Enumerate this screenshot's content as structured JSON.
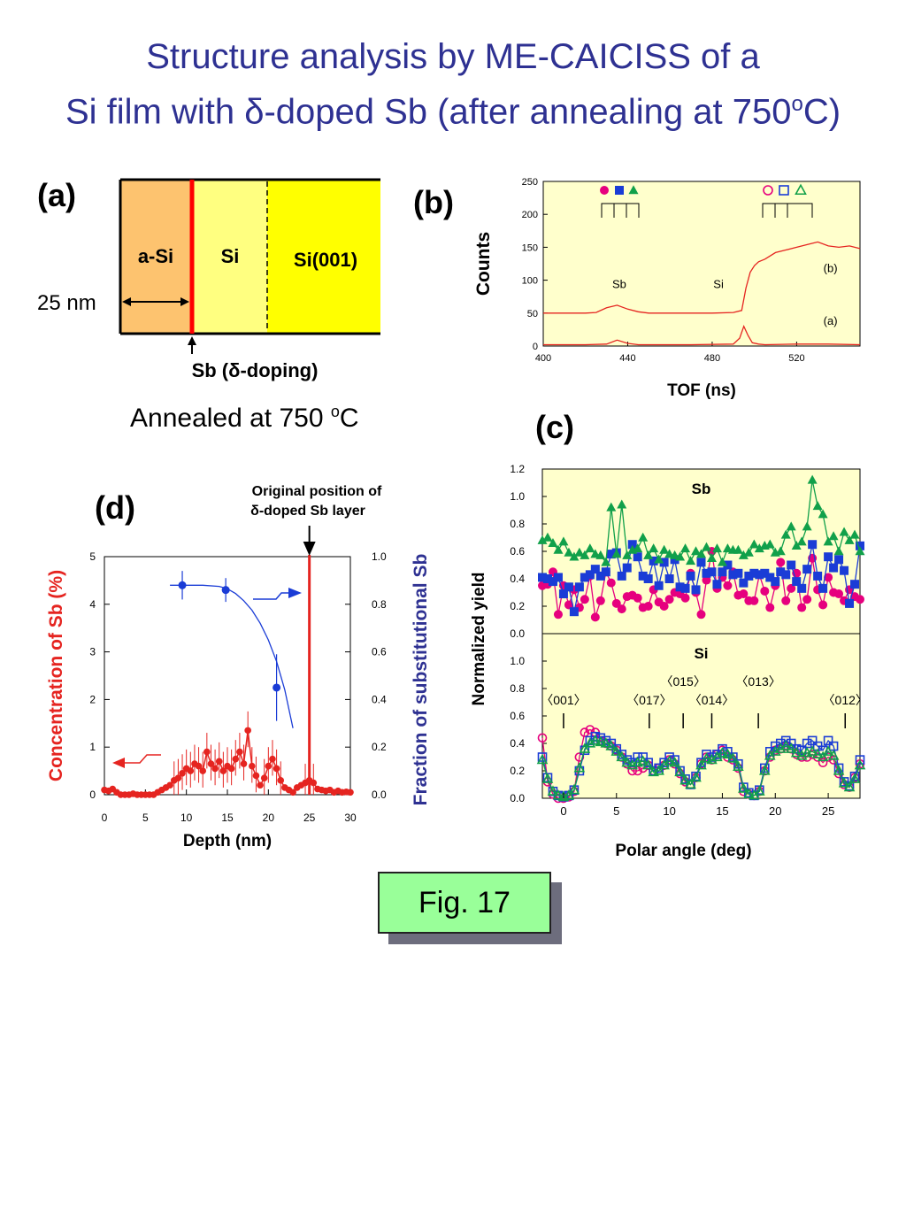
{
  "title": {
    "line1": "Structure analysis by ME-CAICISS of a",
    "line2_pre": "Si film with δ-doped Sb (after annealing at 750",
    "line2_sup": "o",
    "line2_post": "C)"
  },
  "panel_a": {
    "label": "(a)",
    "layers": [
      "a-Si",
      "Si",
      "Si(001)"
    ],
    "thickness_label": "25 nm",
    "marker_label": "Sb (δ-doping)",
    "colors": {
      "a_si": "#fdc36f",
      "si": "#ffff80",
      "si001": "#ffff00",
      "sb": "#ff0000"
    }
  },
  "annealed": {
    "pre": "Annealed at 750 ",
    "sup": "o",
    "post": "C"
  },
  "figure_caption": "Fig. 17",
  "chart_data": [
    {
      "id": "b",
      "label": "(b)",
      "type": "line",
      "xlabel": "TOF (ns)",
      "ylabel": "Counts",
      "xlim": [
        400,
        550
      ],
      "ylim": [
        0,
        250
      ],
      "xticks": [
        400,
        440,
        480,
        520
      ],
      "yticks": [
        0,
        50,
        100,
        150,
        200,
        250
      ],
      "annotations": [
        "Sb",
        "Si",
        "(b)",
        "(a)"
      ],
      "series": [
        {
          "name": "(b)",
          "color": "#e52420",
          "x": [
            400,
            410,
            420,
            425,
            430,
            435,
            440,
            445,
            450,
            460,
            470,
            480,
            490,
            494,
            496,
            498,
            500,
            502,
            505,
            510,
            515,
            520,
            525,
            530,
            535,
            540,
            545,
            550
          ],
          "y": [
            50,
            50,
            50,
            51,
            58,
            62,
            56,
            52,
            50,
            50,
            50,
            50,
            51,
            54,
            88,
            112,
            122,
            128,
            132,
            142,
            146,
            150,
            154,
            158,
            152,
            150,
            152,
            148
          ]
        },
        {
          "name": "(a)",
          "color": "#e52420",
          "x": [
            400,
            420,
            430,
            435,
            440,
            445,
            450,
            470,
            490,
            493,
            495,
            497,
            499,
            502,
            505,
            520,
            535,
            550
          ],
          "y": [
            2,
            2,
            3,
            9,
            4,
            2,
            2,
            2,
            3,
            12,
            30,
            16,
            5,
            3,
            2,
            3,
            3,
            2
          ]
        }
      ],
      "markers": {
        "filled": [
          "circle",
          "square",
          "triangle"
        ],
        "open": [
          "circle",
          "square",
          "triangle"
        ],
        "colors": [
          "#e6007e",
          "#1a3cd6",
          "#11a04a"
        ]
      }
    },
    {
      "id": "c",
      "label": "(c)",
      "type": "scatter",
      "xlabel": "Polar angle (deg)",
      "ylabel": "Normalized yield",
      "xlim": [
        -2,
        28
      ],
      "xticks": [
        0,
        5,
        10,
        15,
        20,
        25
      ],
      "panels": [
        {
          "name": "Sb",
          "ylim": [
            0,
            1.2
          ],
          "yticks": [
            "0.0",
            "0.2",
            "0.4",
            "0.6",
            "0.8",
            "1.0",
            "1.2"
          ],
          "x": [
            -2,
            -1.5,
            -1,
            -0.5,
            0,
            0.5,
            1,
            1.5,
            2,
            2.5,
            3,
            3.5,
            4,
            4.5,
            5,
            5.5,
            6,
            6.5,
            7,
            7.5,
            8,
            8.5,
            9,
            9.5,
            10,
            10.5,
            11,
            11.5,
            12,
            12.5,
            13,
            13.5,
            14,
            14.5,
            15,
            15.5,
            16,
            16.5,
            17,
            17.5,
            18,
            18.5,
            19,
            19.5,
            20,
            20.5,
            21,
            21.5,
            22,
            22.5,
            23,
            23.5,
            24,
            24.5,
            25,
            25.5,
            26,
            26.5,
            27,
            27.5,
            28
          ],
          "series": [
            {
              "name": "red",
              "color": "#e6007e",
              "marker": "circle",
              "values": [
                0.35,
                0.36,
                0.45,
                0.14,
                0.35,
                0.21,
                0.32,
                0.19,
                0.25,
                0.42,
                0.12,
                0.24,
                0.45,
                0.37,
                0.22,
                0.18,
                0.27,
                0.28,
                0.26,
                0.19,
                0.2,
                0.32,
                0.23,
                0.2,
                0.25,
                0.3,
                0.29,
                0.26,
                0.44,
                0.3,
                0.14,
                0.39,
                0.6,
                0.33,
                0.41,
                0.35,
                0.45,
                0.28,
                0.29,
                0.24,
                0.24,
                0.43,
                0.31,
                0.19,
                0.35,
                0.52,
                0.24,
                0.33,
                0.44,
                0.19,
                0.25,
                0.55,
                0.32,
                0.21,
                0.41,
                0.3,
                0.29,
                0.24,
                0.32,
                0.27,
                0.25
              ]
            },
            {
              "name": "blue",
              "color": "#1a3cd6",
              "marker": "square",
              "values": [
                0.41,
                0.4,
                0.38,
                0.41,
                0.29,
                0.34,
                0.16,
                0.34,
                0.41,
                0.43,
                0.47,
                0.42,
                0.45,
                0.58,
                0.59,
                0.42,
                0.48,
                0.65,
                0.56,
                0.42,
                0.4,
                0.53,
                0.35,
                0.52,
                0.4,
                0.54,
                0.34,
                0.33,
                0.42,
                0.32,
                0.52,
                0.44,
                0.45,
                0.36,
                0.45,
                0.5,
                0.43,
                0.44,
                0.37,
                0.42,
                0.44,
                0.43,
                0.44,
                0.41,
                0.38,
                0.45,
                0.43,
                0.5,
                0.38,
                0.33,
                0.47,
                0.65,
                0.42,
                0.33,
                0.56,
                0.48,
                0.54,
                0.46,
                0.22,
                0.36,
                0.64
              ]
            },
            {
              "name": "green",
              "color": "#11a04a",
              "marker": "triangle",
              "values": [
                0.68,
                0.7,
                0.66,
                0.61,
                0.67,
                0.59,
                0.56,
                0.59,
                0.57,
                0.62,
                0.58,
                0.57,
                0.52,
                0.92,
                0.58,
                0.94,
                0.57,
                0.61,
                0.62,
                0.7,
                0.57,
                0.62,
                0.54,
                0.61,
                0.58,
                0.57,
                0.56,
                0.62,
                0.53,
                0.6,
                0.58,
                0.63,
                0.55,
                0.62,
                0.52,
                0.62,
                0.61,
                0.61,
                0.57,
                0.59,
                0.65,
                0.62,
                0.64,
                0.65,
                0.59,
                0.6,
                0.72,
                0.78,
                0.64,
                0.67,
                0.78,
                1.12,
                0.93,
                0.87,
                0.67,
                0.71,
                0.6,
                0.74,
                0.68,
                0.72,
                0.6
              ]
            }
          ]
        },
        {
          "name": "Si",
          "ylim": [
            0,
            1.2
          ],
          "yticks": [
            "0.0",
            "0.2",
            "0.4",
            "0.6",
            "0.8",
            "1.0"
          ],
          "directions": [
            {
              "label": "<001>",
              "x": 0
            },
            {
              "label": "<017>",
              "x": 8.1
            },
            {
              "label": "<015>",
              "x": 11.3
            },
            {
              "label": "<014>",
              "x": 14
            },
            {
              "label": "<013>",
              "x": 18.4
            },
            {
              "label": "<012>",
              "x": 26.6
            }
          ],
          "x": [
            -2,
            -1.5,
            -1,
            -0.5,
            0,
            0.5,
            1,
            1.5,
            2,
            2.5,
            3,
            3.5,
            4,
            4.5,
            5,
            5.5,
            6,
            6.5,
            7,
            7.5,
            8,
            8.5,
            9,
            9.5,
            10,
            10.5,
            11,
            11.5,
            12,
            12.5,
            13,
            13.5,
            14,
            14.5,
            15,
            15.5,
            16,
            16.5,
            17,
            17.5,
            18,
            18.5,
            19,
            19.5,
            20,
            20.5,
            21,
            21.5,
            22,
            22.5,
            23,
            23.5,
            24,
            24.5,
            25,
            25.5,
            26,
            26.5,
            27,
            27.5,
            28
          ],
          "series": [
            {
              "name": "red",
              "color": "#e6007e",
              "marker": "circle",
              "values": [
                0.44,
                0.12,
                0.03,
                0.0,
                0.0,
                0.01,
                0.05,
                0.3,
                0.48,
                0.5,
                0.48,
                0.42,
                0.4,
                0.38,
                0.35,
                0.3,
                0.25,
                0.2,
                0.2,
                0.22,
                0.24,
                0.2,
                0.22,
                0.24,
                0.28,
                0.25,
                0.18,
                0.12,
                0.1,
                0.15,
                0.25,
                0.3,
                0.28,
                0.32,
                0.35,
                0.3,
                0.28,
                0.22,
                0.05,
                0.03,
                0.02,
                0.05,
                0.2,
                0.3,
                0.35,
                0.36,
                0.38,
                0.36,
                0.32,
                0.3,
                0.3,
                0.32,
                0.3,
                0.26,
                0.3,
                0.28,
                0.18,
                0.1,
                0.08,
                0.15,
                0.25
              ]
            },
            {
              "name": "blue",
              "color": "#1a3cd6",
              "marker": "square",
              "values": [
                0.3,
                0.15,
                0.05,
                0.02,
                0.01,
                0.02,
                0.06,
                0.2,
                0.35,
                0.42,
                0.45,
                0.44,
                0.42,
                0.4,
                0.36,
                0.32,
                0.28,
                0.26,
                0.3,
                0.3,
                0.26,
                0.2,
                0.22,
                0.26,
                0.3,
                0.28,
                0.2,
                0.14,
                0.1,
                0.16,
                0.26,
                0.32,
                0.3,
                0.32,
                0.36,
                0.34,
                0.3,
                0.25,
                0.08,
                0.04,
                0.02,
                0.06,
                0.22,
                0.34,
                0.38,
                0.4,
                0.42,
                0.4,
                0.36,
                0.35,
                0.4,
                0.42,
                0.38,
                0.35,
                0.42,
                0.38,
                0.22,
                0.12,
                0.09,
                0.16,
                0.28
              ]
            },
            {
              "name": "green",
              "color": "#11a04a",
              "marker": "triangle",
              "values": [
                0.28,
                0.14,
                0.05,
                0.02,
                0.01,
                0.02,
                0.06,
                0.22,
                0.36,
                0.4,
                0.42,
                0.41,
                0.4,
                0.38,
                0.34,
                0.3,
                0.26,
                0.24,
                0.26,
                0.27,
                0.24,
                0.19,
                0.2,
                0.24,
                0.27,
                0.26,
                0.19,
                0.13,
                0.1,
                0.15,
                0.24,
                0.29,
                0.28,
                0.3,
                0.33,
                0.32,
                0.29,
                0.23,
                0.07,
                0.03,
                0.02,
                0.05,
                0.2,
                0.31,
                0.34,
                0.36,
                0.38,
                0.36,
                0.33,
                0.31,
                0.33,
                0.34,
                0.32,
                0.3,
                0.34,
                0.31,
                0.2,
                0.11,
                0.08,
                0.14,
                0.24
              ]
            }
          ]
        }
      ]
    },
    {
      "id": "d",
      "label": "(d)",
      "type": "line",
      "xlabel": "Depth (nm)",
      "ylabel": "Concentration of Sb (%)",
      "y2label": "Fraction of substitutional Sb",
      "xlim": [
        0,
        30
      ],
      "ylim": [
        0,
        5
      ],
      "y2lim": [
        0,
        1
      ],
      "xticks": [
        0,
        5,
        10,
        15,
        20,
        25,
        30
      ],
      "yticks": [
        0,
        1,
        2,
        3,
        4,
        5
      ],
      "y2ticks": [
        "0.0",
        "0.2",
        "0.4",
        "0.6",
        "0.8",
        "1.0"
      ],
      "annotation": "Original position of δ-doped Sb layer",
      "annotation_x": 25,
      "series": [
        {
          "name": "Concentration",
          "color": "#e52420",
          "axis": "left",
          "x": [
            0,
            0.5,
            1,
            1.5,
            2,
            2.5,
            3,
            3.5,
            4,
            4.5,
            5,
            5.5,
            6,
            6.5,
            7,
            7.5,
            8,
            8.5,
            9,
            9.5,
            10,
            10.5,
            11,
            11.5,
            12,
            12.5,
            13,
            13.5,
            14,
            14.5,
            15,
            15.5,
            16,
            16.5,
            17,
            17.5,
            18,
            18.5,
            19,
            19.5,
            20,
            20.5,
            21,
            21.5,
            22,
            22.5,
            23,
            23.5,
            24,
            24.5,
            25,
            25.5,
            26,
            26.5,
            27,
            27.5,
            28,
            28.5,
            29,
            29.5,
            30
          ],
          "y": [
            0.1,
            0.08,
            0.12,
            0.05,
            0.0,
            0.0,
            0.0,
            0.02,
            0.0,
            0.0,
            0.0,
            0.0,
            0.0,
            0.05,
            0.1,
            0.15,
            0.2,
            0.3,
            0.35,
            0.45,
            0.55,
            0.5,
            0.65,
            0.6,
            0.5,
            0.9,
            0.65,
            0.55,
            0.7,
            0.5,
            0.6,
            0.55,
            0.75,
            0.9,
            0.65,
            1.35,
            0.6,
            0.4,
            0.2,
            0.35,
            0.6,
            0.75,
            0.55,
            0.3,
            0.15,
            0.1,
            0.05,
            0.15,
            0.2,
            0.25,
            0.3,
            0.25,
            0.12,
            0.1,
            0.08,
            0.1,
            0.05,
            0.08,
            0.05,
            0.06,
            0.05
          ]
        },
        {
          "name": "Fraction",
          "color": "#1a3cd6",
          "axis": "right",
          "points": {
            "x": [
              9.5,
              14.8,
              21
            ],
            "y": [
              0.88,
              0.86,
              0.45
            ],
            "yerr": [
              0.06,
              0.05,
              0.14
            ]
          },
          "fit_x": [
            8,
            10,
            12,
            14,
            15,
            16,
            17,
            18,
            19,
            20,
            21,
            22,
            23
          ],
          "fit_y": [
            0.88,
            0.88,
            0.88,
            0.875,
            0.865,
            0.845,
            0.815,
            0.775,
            0.72,
            0.65,
            0.56,
            0.44,
            0.28
          ]
        }
      ]
    }
  ]
}
